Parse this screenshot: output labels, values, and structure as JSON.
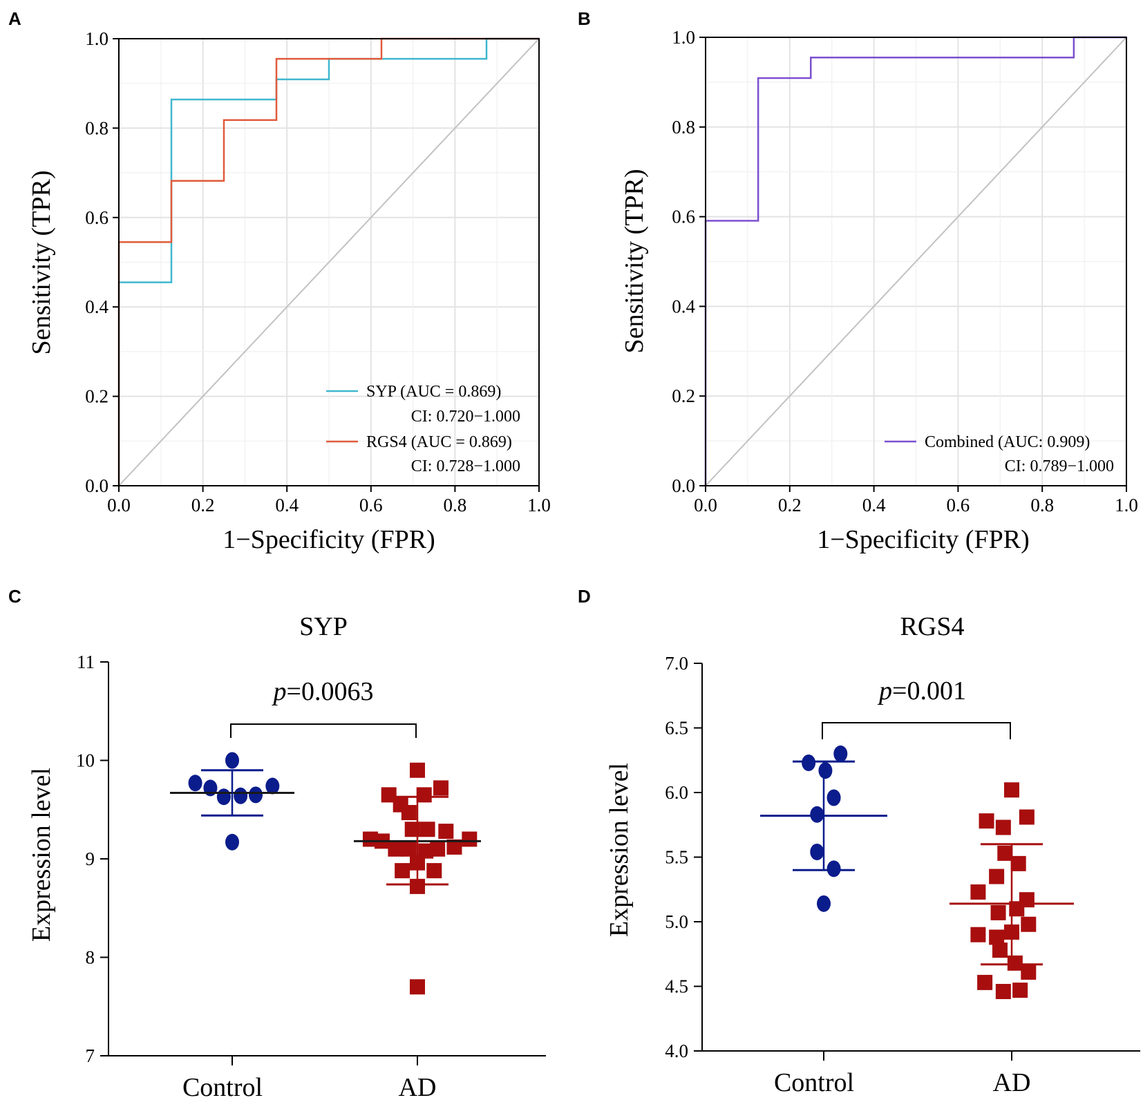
{
  "chart_data": [
    {
      "panel": "A",
      "type": "line",
      "xlabel": "1−Specificity (FPR)",
      "ylabel": "Sensitivity (TPR)",
      "xlim": [
        0,
        1
      ],
      "ylim": [
        0,
        1
      ],
      "xticks": [
        "0.0",
        "0.2",
        "0.4",
        "0.6",
        "0.8",
        "1.0"
      ],
      "yticks": [
        "0.0",
        "0.2",
        "0.4",
        "0.6",
        "0.8",
        "1.0"
      ],
      "grid": true,
      "legend_position": "bottom-right",
      "series": [
        {
          "name": "SYP",
          "label": "SYP (AUC = 0.869)",
          "ci": "CI: 0.720−1.000",
          "color": "#3fb7cf",
          "x": [
            0,
            0,
            0.125,
            0.125,
            0.375,
            0.375,
            0.5,
            0.5,
            0.875,
            0.875,
            1.0
          ],
          "y": [
            0,
            0.455,
            0.455,
            0.864,
            0.864,
            0.909,
            0.909,
            0.955,
            0.955,
            1.0,
            1.0
          ]
        },
        {
          "name": "RGS4",
          "label": "RGS4 (AUC = 0.869)",
          "ci": "CI: 0.728−1.000",
          "color": "#e05a3a",
          "x": [
            0,
            0,
            0.125,
            0.125,
            0.25,
            0.25,
            0.375,
            0.375,
            0.625,
            0.625,
            1.0
          ],
          "y": [
            0,
            0.545,
            0.545,
            0.682,
            0.682,
            0.818,
            0.818,
            0.955,
            0.955,
            1.0,
            1.0
          ]
        }
      ],
      "diagonal_color": "#c2c2c2"
    },
    {
      "panel": "B",
      "type": "line",
      "xlabel": "1−Specificity (FPR)",
      "ylabel": "Sensitivity (TPR)",
      "xlim": [
        0,
        1
      ],
      "ylim": [
        0,
        1
      ],
      "xticks": [
        "0.0",
        "0.2",
        "0.4",
        "0.6",
        "0.8",
        "1.0"
      ],
      "yticks": [
        "0.0",
        "0.2",
        "0.4",
        "0.6",
        "0.8",
        "1.0"
      ],
      "grid": true,
      "legend_position": "bottom-right",
      "series": [
        {
          "name": "Combined",
          "label": "Combined (AUC: 0.909)",
          "ci": "CI: 0.789−1.000",
          "color": "#7b4fd0",
          "x": [
            0,
            0,
            0.125,
            0.125,
            0.25,
            0.25,
            0.875,
            0.875,
            1.0
          ],
          "y": [
            0,
            0.591,
            0.591,
            0.909,
            0.909,
            0.955,
            0.955,
            1.0,
            1.0
          ]
        }
      ],
      "diagonal_color": "#c2c2c2"
    },
    {
      "panel": "C",
      "type": "scatter",
      "title": "SYP",
      "ylabel": "Expression level",
      "ylim": [
        7,
        11
      ],
      "yticks": [
        "7",
        "8",
        "9",
        "10",
        "11"
      ],
      "categories": [
        "Control",
        "AD"
      ],
      "p_prefix": "p",
      "p_value": "=0.0063",
      "groups": [
        {
          "name": "Control",
          "marker": "circle",
          "color": "#0b1c8c",
          "mean": 9.67,
          "sd_low": 9.44,
          "sd_high": 9.9,
          "points": [
            [
              -0.22,
              9.77
            ],
            [
              -0.13,
              9.72
            ],
            [
              -0.05,
              9.63
            ],
            [
              0.0,
              10.0
            ],
            [
              0.05,
              9.64
            ],
            [
              0.14,
              9.65
            ],
            [
              0.24,
              9.74
            ],
            [
              0.0,
              9.17
            ]
          ]
        },
        {
          "name": "AD",
          "marker": "square",
          "color": "#a80e0e",
          "mean": 9.18,
          "sd_low": 8.74,
          "sd_high": 9.63,
          "points": [
            [
              0.0,
              9.9
            ],
            [
              -0.17,
              9.65
            ],
            [
              -0.1,
              9.55
            ],
            [
              -0.05,
              9.47
            ],
            [
              0.04,
              9.65
            ],
            [
              0.14,
              9.72
            ],
            [
              -0.03,
              9.3
            ],
            [
              0.06,
              9.3
            ],
            [
              0.17,
              9.28
            ],
            [
              -0.28,
              9.2
            ],
            [
              -0.21,
              9.18
            ],
            [
              -0.13,
              9.1
            ],
            [
              -0.05,
              9.1
            ],
            [
              0.05,
              9.08
            ],
            [
              0.12,
              9.1
            ],
            [
              0.22,
              9.12
            ],
            [
              0.31,
              9.2
            ],
            [
              -0.09,
              8.88
            ],
            [
              0.0,
              8.96
            ],
            [
              0.1,
              8.88
            ],
            [
              0.0,
              8.72
            ],
            [
              0.0,
              7.7
            ]
          ]
        }
      ]
    },
    {
      "panel": "D",
      "type": "scatter",
      "title": "RGS4",
      "ylabel": "Expression level",
      "ylim": [
        4.0,
        7.0
      ],
      "yticks": [
        "4.0",
        "4.5",
        "5.0",
        "5.5",
        "6.0",
        "6.5",
        "7.0"
      ],
      "categories": [
        "Control",
        "AD"
      ],
      "p_prefix": "p",
      "p_value": "=0.001",
      "groups": [
        {
          "name": "Control",
          "marker": "circle",
          "color": "#0b1c8c",
          "mean": 5.82,
          "sd_low": 5.4,
          "sd_high": 6.24,
          "points": [
            [
              -0.09,
              6.23
            ],
            [
              0.1,
              6.3
            ],
            [
              0.01,
              6.17
            ],
            [
              0.06,
              5.96
            ],
            [
              -0.04,
              5.83
            ],
            [
              -0.04,
              5.54
            ],
            [
              0.06,
              5.41
            ],
            [
              0.0,
              5.14
            ]
          ]
        },
        {
          "name": "AD",
          "marker": "square",
          "color": "#a80e0e",
          "mean": 5.14,
          "sd_low": 4.67,
          "sd_high": 5.6,
          "points": [
            [
              0.0,
              6.02
            ],
            [
              -0.15,
              5.78
            ],
            [
              -0.05,
              5.73
            ],
            [
              0.09,
              5.81
            ],
            [
              -0.04,
              5.53
            ],
            [
              0.04,
              5.45
            ],
            [
              -0.2,
              5.23
            ],
            [
              -0.09,
              5.35
            ],
            [
              0.09,
              5.17
            ],
            [
              -0.08,
              5.07
            ],
            [
              0.03,
              5.1
            ],
            [
              0.1,
              4.98
            ],
            [
              -0.2,
              4.9
            ],
            [
              -0.09,
              4.88
            ],
            [
              0.0,
              4.92
            ],
            [
              -0.07,
              4.78
            ],
            [
              0.02,
              4.68
            ],
            [
              0.1,
              4.61
            ],
            [
              -0.16,
              4.53
            ],
            [
              -0.05,
              4.46
            ],
            [
              0.05,
              4.47
            ]
          ]
        }
      ]
    }
  ]
}
